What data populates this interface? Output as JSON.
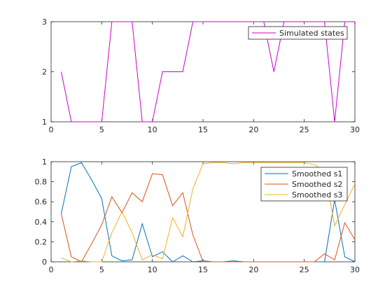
{
  "chart_data": [
    {
      "type": "line",
      "xlim": [
        0,
        30
      ],
      "ylim": [
        1,
        3
      ],
      "xticks": [
        "0",
        "5",
        "10",
        "15",
        "20",
        "25",
        "30"
      ],
      "yticks": [
        "1",
        "2",
        "3"
      ],
      "grid": false,
      "legend_position": "top-right",
      "x": [
        1,
        2,
        3,
        4,
        5,
        6,
        7,
        8,
        9,
        10,
        11,
        12,
        13,
        14,
        15,
        16,
        17,
        18,
        19,
        20,
        21,
        22,
        23,
        24,
        25,
        26,
        27,
        28,
        29,
        30
      ],
      "series": [
        {
          "name": "Simulated states",
          "color": "#cc00cc",
          "values": [
            2,
            1,
            1,
            1,
            1,
            3,
            3,
            3,
            1,
            1,
            2,
            2,
            2,
            3,
            3,
            3,
            3,
            3,
            3,
            3,
            3,
            2,
            3,
            3,
            3,
            3,
            3,
            1,
            3,
            3
          ]
        }
      ]
    },
    {
      "type": "line",
      "xlim": [
        0,
        30
      ],
      "ylim": [
        0,
        1
      ],
      "xticks": [
        "0",
        "5",
        "10",
        "15",
        "20",
        "25",
        "30"
      ],
      "yticks": [
        "0",
        "0.2",
        "0.4",
        "0.6",
        "0.8",
        "1"
      ],
      "grid": false,
      "legend_position": "top-right",
      "x": [
        1,
        2,
        3,
        4,
        5,
        6,
        7,
        8,
        9,
        10,
        11,
        12,
        13,
        14,
        15,
        16,
        17,
        18,
        19,
        20,
        21,
        22,
        23,
        24,
        25,
        26,
        27,
        28,
        29,
        30
      ],
      "series": [
        {
          "name": "Smoothed s1",
          "color": "#0072bd",
          "values": [
            0.48,
            0.95,
            0.99,
            0.82,
            0.63,
            0.06,
            0.01,
            0.02,
            0.38,
            0.05,
            0.1,
            0.0,
            0.06,
            0.0,
            0.01,
            0.0,
            0.0,
            0.01,
            0.0,
            0.0,
            0.0,
            0.0,
            0.0,
            0.0,
            0.0,
            0.0,
            0.0,
            0.62,
            0.05,
            0.0
          ]
        },
        {
          "name": "Smoothed s2",
          "color": "#d95319",
          "values": [
            0.48,
            0.05,
            0.0,
            0.18,
            0.37,
            0.65,
            0.49,
            0.69,
            0.6,
            0.88,
            0.87,
            0.56,
            0.69,
            0.27,
            0.0,
            0.0,
            0.0,
            0.0,
            0.0,
            0.0,
            0.0,
            0.0,
            0.0,
            0.0,
            0.0,
            0.0,
            0.08,
            0.02,
            0.39,
            0.22
          ]
        },
        {
          "name": "Smoothed s3",
          "color": "#edb120",
          "values": [
            0.04,
            0.0,
            0.01,
            0.0,
            0.0,
            0.29,
            0.5,
            0.29,
            0.02,
            0.07,
            0.03,
            0.44,
            0.25,
            0.73,
            0.98,
            0.99,
            0.99,
            0.98,
            0.99,
            0.99,
            0.99,
            0.99,
            0.99,
            0.99,
            0.99,
            0.97,
            0.91,
            0.36,
            0.57,
            0.78
          ]
        }
      ]
    }
  ]
}
